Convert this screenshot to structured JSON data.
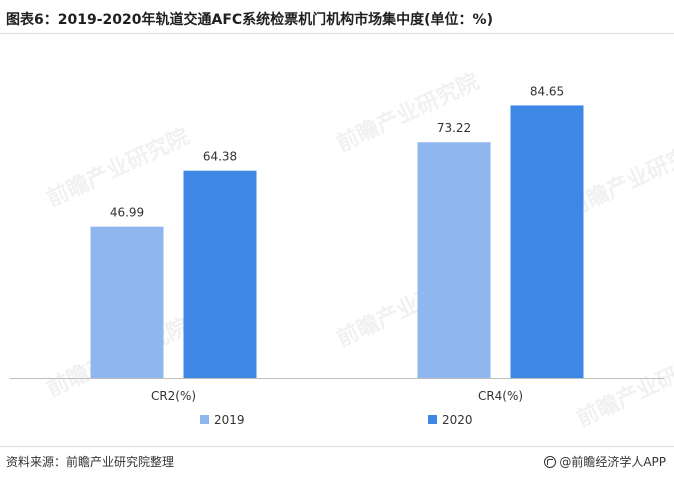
{
  "title": "图表6：2019-2020年轨道交通AFC系统检票机门机构市场集中度(单位：%)",
  "source": "资料来源：前瞻产业研究院整理",
  "brand": "@前瞻经济学人APP",
  "watermark": "前瞻产业研究院",
  "chart_data": {
    "type": "bar",
    "categories": [
      "CR2(%)",
      "CR4(%)"
    ],
    "series": [
      {
        "name": "2019",
        "values": [
          46.99,
          73.22
        ],
        "color": "#8db7ee"
      },
      {
        "name": "2020",
        "values": [
          64.38,
          84.65
        ],
        "color": "#3f87e4"
      }
    ],
    "ylim": [
      0,
      100
    ],
    "grid": false,
    "legend_position": "bottom-center",
    "axis_color": "#bfbfbf",
    "label_color": "#333333"
  }
}
